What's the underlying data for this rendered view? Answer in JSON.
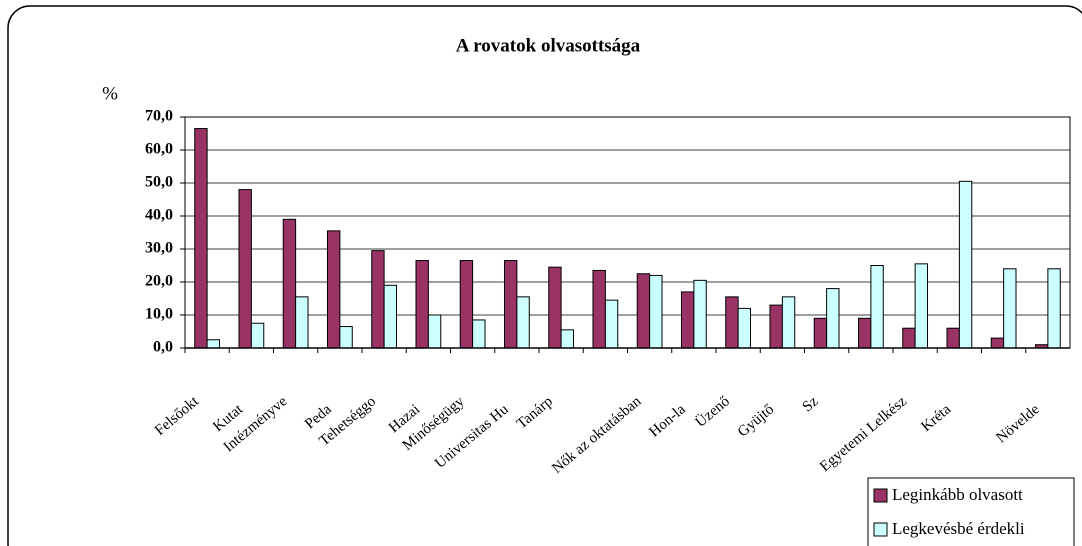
{
  "chart_data": {
    "type": "bar",
    "title": "A rovatok olvasottsága",
    "y_label": "%",
    "categories": [
      "Felsőokt",
      "Kutat",
      "Intézményve",
      "Peda",
      "Tehetséggo",
      "Hazai",
      "Minőségügy",
      "Universitas Hu",
      "Tanárp",
      null,
      "Nők az oktatásban",
      "Hon-la",
      "Üzenő",
      "Gyüjtő",
      "Sz",
      null,
      "Egyetemi Lelkész",
      "Kréta",
      null,
      "Növelde"
    ],
    "series": [
      {
        "name": "Leginkább olvasott",
        "color": "#993366",
        "values": [
          66.5,
          48,
          39,
          35.5,
          29.5,
          26.5,
          26.5,
          26.5,
          24.5,
          23.5,
          22.5,
          17,
          15.5,
          13,
          9,
          9,
          6,
          6,
          3,
          1
        ]
      },
      {
        "name": "Legkevésbé érdekli",
        "color": "#ccffff",
        "values": [
          2.5,
          7.5,
          15.5,
          6.5,
          19,
          10,
          8.5,
          15.5,
          5.5,
          14.5,
          22,
          20.5,
          12,
          15.5,
          18,
          25,
          25.5,
          50.5,
          24,
          24
        ]
      }
    ],
    "ylim": [
      0,
      70
    ],
    "yticks": [
      {
        "value": 0,
        "label": "0,0"
      },
      {
        "value": 10,
        "label": "10,0"
      },
      {
        "value": 20,
        "label": "20,0"
      },
      {
        "value": 30,
        "label": "30,0"
      },
      {
        "value": 40,
        "label": "40,0"
      },
      {
        "value": 50,
        "label": "50,0"
      },
      {
        "value": 60,
        "label": "60,0"
      },
      {
        "value": 70,
        "label": "70,0"
      }
    ],
    "grid": true,
    "legend": "bottom-right"
  }
}
